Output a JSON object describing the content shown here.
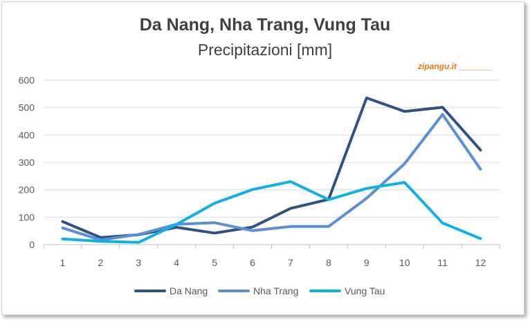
{
  "chart_data": {
    "type": "line",
    "title": "Da Nang, Nha Trang, Vung Tau",
    "subtitle": "Precipitazioni [mm]",
    "watermark": "zipangu.it _______",
    "categories": [
      "1",
      "2",
      "3",
      "4",
      "5",
      "6",
      "7",
      "8",
      "9",
      "10",
      "11",
      "12"
    ],
    "series": [
      {
        "name": "Da Nang",
        "color": "#2f5283",
        "values": [
          84,
          26,
          36,
          63,
          42,
          64,
          132,
          165,
          535,
          486,
          501,
          345
        ]
      },
      {
        "name": "Nha Trang",
        "color": "#5b8fd6",
        "values": [
          61,
          17,
          37,
          74,
          80,
          51,
          66,
          66,
          169,
          295,
          475,
          275
        ]
      },
      {
        "name": "Vung Tau",
        "color": "#0fb0e8",
        "values": [
          21,
          12,
          8,
          74,
          151,
          201,
          230,
          164,
          205,
          227,
          79,
          22
        ]
      }
    ],
    "ylim": [
      0,
      600
    ],
    "yticks": [
      0,
      100,
      200,
      300,
      400,
      500,
      600
    ],
    "grid": true,
    "legend_position": "bottom",
    "colors": {
      "axis": "#bfbfbf",
      "grid": "#d9d9d9",
      "text": "#595959",
      "title": "#404040",
      "watermark": "#e97a12"
    }
  }
}
